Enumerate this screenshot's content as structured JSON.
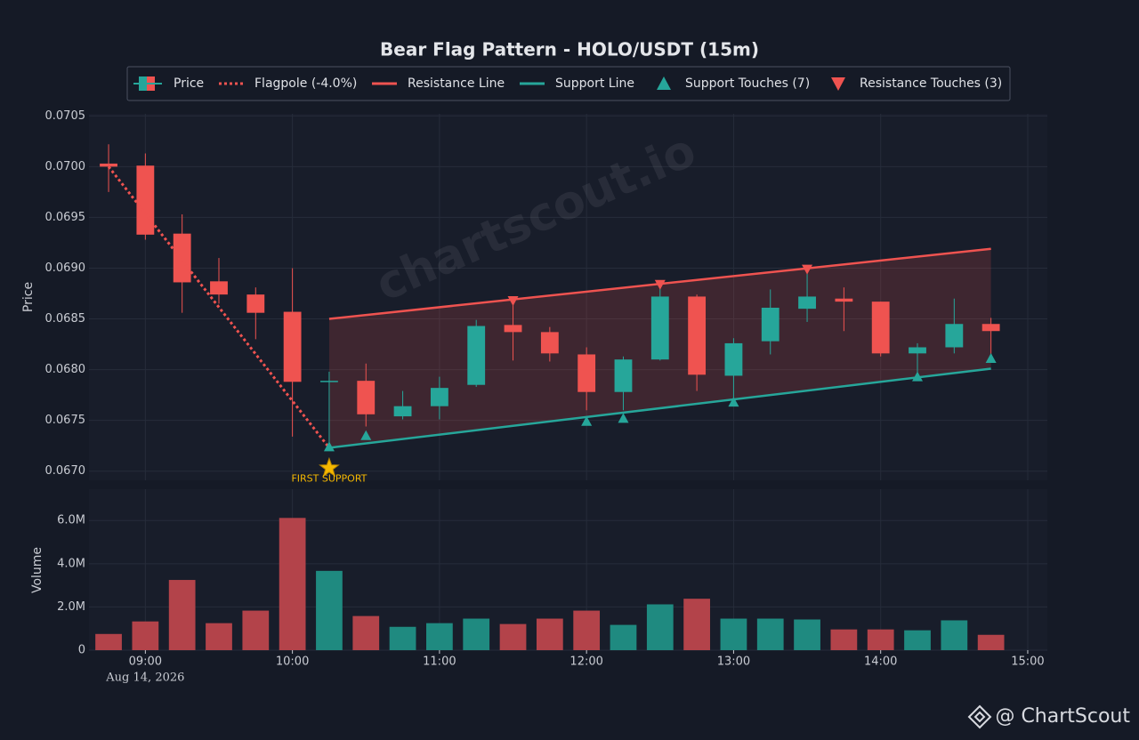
{
  "chart_data": [
    {
      "type": "candlestick",
      "title": "Bear Flag Pattern - HOLO/USDT (15m)",
      "ylabel": "Price",
      "xlim": [
        "2026-08-14 08:37",
        "2026-08-14 15:08"
      ],
      "ylim": [
        0.06691,
        0.07052
      ],
      "yticks": [
        {
          "value": 0.067,
          "label": "0.0670"
        },
        {
          "value": 0.0675,
          "label": "0.0675"
        },
        {
          "value": 0.068,
          "label": "0.0680"
        },
        {
          "value": 0.0685,
          "label": "0.0685"
        },
        {
          "value": 0.069,
          "label": "0.0690"
        },
        {
          "value": 0.0695,
          "label": "0.0695"
        },
        {
          "value": 0.07,
          "label": "0.0700"
        },
        {
          "value": 0.0705,
          "label": "0.0705"
        }
      ],
      "grid": true,
      "legend": "upper center",
      "series": [
        {
          "name": "Price",
          "type": "candlestick",
          "up_color": "#26a69a",
          "down_color": "#ef5350",
          "x": [
            "2026-08-14 08:45",
            "2026-08-14 09:00",
            "2026-08-14 09:15",
            "2026-08-14 09:30",
            "2026-08-14 09:45",
            "2026-08-14 10:00",
            "2026-08-14 10:15",
            "2026-08-14 10:30",
            "2026-08-14 10:45",
            "2026-08-14 11:00",
            "2026-08-14 11:15",
            "2026-08-14 11:30",
            "2026-08-14 11:45",
            "2026-08-14 12:00",
            "2026-08-14 12:15",
            "2026-08-14 12:30",
            "2026-08-14 12:45",
            "2026-08-14 13:00",
            "2026-08-14 13:15",
            "2026-08-14 13:30",
            "2026-08-14 13:45",
            "2026-08-14 14:00",
            "2026-08-14 14:15",
            "2026-08-14 14:30",
            "2026-08-14 14:45"
          ],
          "open": [
            0.07003,
            0.07001,
            0.06934,
            0.06887,
            0.06874,
            0.06857,
            0.06788,
            0.06789,
            0.06754,
            0.06764,
            0.06785,
            0.06844,
            0.06837,
            0.06815,
            0.06778,
            0.0681,
            0.06872,
            0.06794,
            0.06828,
            0.0686,
            0.0687,
            0.06867,
            0.06816,
            0.06822,
            0.06845
          ],
          "high": [
            0.07022,
            0.07013,
            0.06953,
            0.0691,
            0.06881,
            0.069,
            0.06798,
            0.06806,
            0.06779,
            0.06793,
            0.06849,
            0.06871,
            0.06842,
            0.06822,
            0.06813,
            0.06886,
            0.06874,
            0.06831,
            0.06879,
            0.06897,
            0.06881,
            0.06867,
            0.06826,
            0.0687,
            0.06851
          ],
          "low": [
            0.06975,
            0.06928,
            0.06856,
            0.06865,
            0.0683,
            0.06734,
            0.06722,
            0.06744,
            0.06751,
            0.06751,
            0.06783,
            0.06809,
            0.06808,
            0.0676,
            0.0676,
            0.06809,
            0.06779,
            0.06772,
            0.06815,
            0.06847,
            0.06838,
            0.06813,
            0.06793,
            0.06816,
            0.06814
          ],
          "close": [
            0.07,
            0.06933,
            0.06886,
            0.06874,
            0.06856,
            0.06788,
            0.06789,
            0.06756,
            0.06764,
            0.06782,
            0.06843,
            0.06837,
            0.06816,
            0.06778,
            0.0681,
            0.06872,
            0.06795,
            0.06826,
            0.06861,
            0.06872,
            0.06867,
            0.06816,
            0.06822,
            0.06845,
            0.06838
          ]
        },
        {
          "name": "Flagpole (-4.0%)",
          "type": "line",
          "style": "dotted",
          "color": "#ef5350",
          "x": [
            "2026-08-14 08:45",
            "2026-08-14 10:15"
          ],
          "values": [
            0.07,
            0.06723
          ]
        },
        {
          "name": "Resistance Line",
          "type": "line",
          "style": "solid",
          "color": "#ef5350",
          "x": [
            "2026-08-14 10:15",
            "2026-08-14 14:45"
          ],
          "values": [
            0.0685,
            0.06919
          ]
        },
        {
          "name": "Support Line",
          "type": "line",
          "style": "solid",
          "color": "#26a69a",
          "x": [
            "2026-08-14 10:15",
            "2026-08-14 14:45"
          ],
          "values": [
            0.06723,
            0.06801
          ]
        },
        {
          "name": "Support Touches (7)",
          "type": "scatter",
          "marker": "triangle-up",
          "color": "#26a69a",
          "x": [
            "2026-08-14 10:15",
            "2026-08-14 10:30",
            "2026-08-14 12:00",
            "2026-08-14 12:15",
            "2026-08-14 13:00",
            "2026-08-14 14:15",
            "2026-08-14 14:45"
          ],
          "values": [
            0.06724,
            0.06735,
            0.06749,
            0.06752,
            0.06768,
            0.06793,
            0.06811
          ]
        },
        {
          "name": "Resistance Touches (3)",
          "type": "scatter",
          "marker": "triangle-down",
          "color": "#ef5350",
          "x": [
            "2026-08-14 11:30",
            "2026-08-14 12:30",
            "2026-08-14 13:30"
          ],
          "values": [
            0.06868,
            0.06884,
            0.06899
          ]
        }
      ],
      "annotations": [
        {
          "text": "FIRST SUPPORT",
          "x": "2026-08-14 10:15",
          "y": 0.06703,
          "marker": "star",
          "color": "#f5b800"
        }
      ],
      "watermark": "chartscout.io"
    },
    {
      "type": "bar",
      "ylabel": "Volume",
      "up_color": "#1f8a80",
      "down_color": "#b3434a",
      "x": [
        "2026-08-14 08:45",
        "2026-08-14 09:00",
        "2026-08-14 09:15",
        "2026-08-14 09:30",
        "2026-08-14 09:45",
        "2026-08-14 10:00",
        "2026-08-14 10:15",
        "2026-08-14 10:30",
        "2026-08-14 10:45",
        "2026-08-14 11:00",
        "2026-08-14 11:15",
        "2026-08-14 11:30",
        "2026-08-14 11:45",
        "2026-08-14 12:00",
        "2026-08-14 12:15",
        "2026-08-14 12:30",
        "2026-08-14 12:45",
        "2026-08-14 13:00",
        "2026-08-14 13:15",
        "2026-08-14 13:30",
        "2026-08-14 13:45",
        "2026-08-14 14:00",
        "2026-08-14 14:15",
        "2026-08-14 14:30",
        "2026-08-14 14:45"
      ],
      "values": [
        750000,
        1330000,
        3250000,
        1250000,
        1830000,
        6120000,
        3670000,
        1580000,
        1080000,
        1250000,
        1460000,
        1210000,
        1460000,
        1830000,
        1170000,
        2120000,
        2380000,
        1460000,
        1460000,
        1420000,
        960000,
        960000,
        920000,
        1380000,
        710000
      ],
      "xlim": [
        "2026-08-14 08:37",
        "2026-08-14 15:08"
      ],
      "xticks": [
        {
          "value": "2026-08-14 09:00",
          "label": "09:00"
        },
        {
          "value": "2026-08-14 10:00",
          "label": "10:00"
        },
        {
          "value": "2026-08-14 11:00",
          "label": "11:00"
        },
        {
          "value": "2026-08-14 12:00",
          "label": "12:00"
        },
        {
          "value": "2026-08-14 13:00",
          "label": "13:00"
        },
        {
          "value": "2026-08-14 14:00",
          "label": "14:00"
        },
        {
          "value": "2026-08-14 15:00",
          "label": "15:00"
        }
      ],
      "x_date_label": "Aug 14, 2026",
      "ylim": [
        0,
        7450000
      ],
      "yticks": [
        0,
        {
          "value": 2000000,
          "label": "2.0M"
        },
        {
          "value": 4000000,
          "label": "4.0M"
        },
        {
          "value": 6000000,
          "label": "6.0M"
        }
      ],
      "grid": true
    }
  ],
  "footer": "@ ChartScout"
}
